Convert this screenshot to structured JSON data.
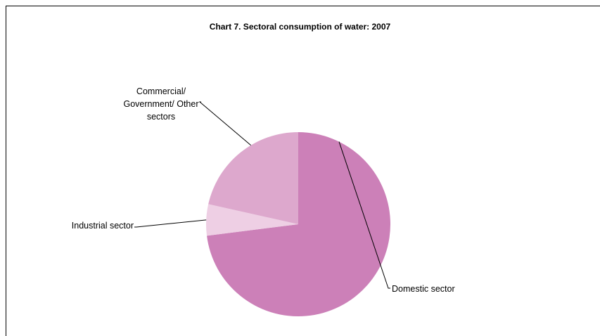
{
  "chart_data": {
    "type": "pie",
    "title": "Chart 7.  Sectoral consumption of water: 2007",
    "slices": [
      {
        "name": "Domestic sector",
        "value": 73,
        "color": "#cc80b8",
        "label_lines": [
          "Domestic sector"
        ]
      },
      {
        "name": "Industrial sector",
        "value": 5.5,
        "color": "#eecfe4",
        "label_lines": [
          "Industrial sector"
        ]
      },
      {
        "name": "Commercial/ Government/ Other sectors",
        "value": 21.5,
        "color": "#dda8cd",
        "label_lines": [
          "Commercial/",
          "Government/ Other",
          "sectors"
        ]
      }
    ],
    "start_angle_deg": 0,
    "direction": "clockwise",
    "legend": "none"
  }
}
